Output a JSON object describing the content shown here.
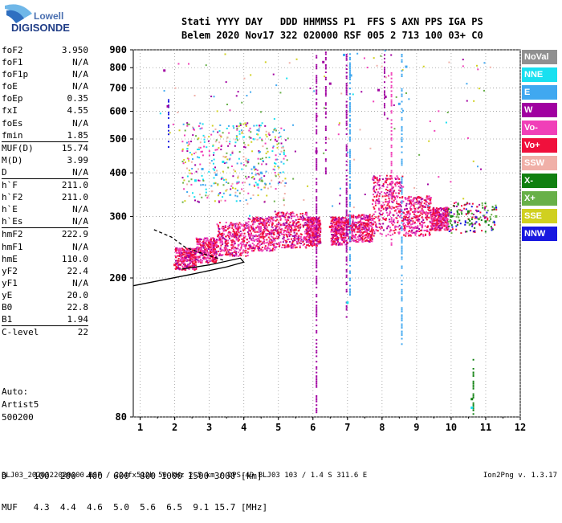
{
  "header": {
    "line1": "Stati YYYY DAY   DDD HHMMSS P1  FFS S AXN PPS IGA PS",
    "line2": "Belem 2020 Nov17 322 020000 RSF 005 2 713 100 03+ C0"
  },
  "logo": {
    "top": "Lowell",
    "bottom": "DIGISONDE"
  },
  "params": [
    {
      "k": "foF2",
      "v": "3.950"
    },
    {
      "k": "foF1",
      "v": "N/A"
    },
    {
      "k": "foF1p",
      "v": "N/A"
    },
    {
      "k": "foE",
      "v": "N/A"
    },
    {
      "k": "foEp",
      "v": "0.35"
    },
    {
      "k": "fxI",
      "v": "4.55"
    },
    {
      "k": "foEs",
      "v": "N/A"
    },
    {
      "k": "fmin",
      "v": "1.85"
    },
    {
      "k": "MUF(D)",
      "v": "15.74",
      "sep": true
    },
    {
      "k": "M(D)",
      "v": "3.99"
    },
    {
      "k": "D",
      "v": "N/A"
    },
    {
      "k": "h`F",
      "v": "211.0",
      "sep": true
    },
    {
      "k": "h`F2",
      "v": "211.0"
    },
    {
      "k": "h`E",
      "v": "N/A"
    },
    {
      "k": "h`Es",
      "v": "N/A"
    },
    {
      "k": "hmF2",
      "v": "222.9",
      "sep": true
    },
    {
      "k": "hmF1",
      "v": "N/A"
    },
    {
      "k": "hmE",
      "v": "110.0"
    },
    {
      "k": "yF2",
      "v": "22.4"
    },
    {
      "k": "yF1",
      "v": "N/A"
    },
    {
      "k": "yE",
      "v": "20.0"
    },
    {
      "k": "B0",
      "v": "22.8"
    },
    {
      "k": "B1",
      "v": "1.94"
    },
    {
      "k": "C-level",
      "v": "22",
      "sep": true
    }
  ],
  "auto": {
    "line1": "Auto:",
    "line2": "Artist5",
    "line3": "500200"
  },
  "legend": [
    {
      "label": "NoVal",
      "color": "#909090"
    },
    {
      "label": "NNE",
      "color": "#19e0f0"
    },
    {
      "label": "E",
      "color": "#40a8f0"
    },
    {
      "label": "W",
      "color": "#a000a0"
    },
    {
      "label": "Vo-",
      "color": "#f040b8"
    },
    {
      "label": "Vo+",
      "color": "#f0103c"
    },
    {
      "label": "SSW",
      "color": "#f0b0a8"
    },
    {
      "label": "X-",
      "color": "#108010"
    },
    {
      "label": "X+",
      "color": "#68b048"
    },
    {
      "label": "SSE",
      "color": "#d0d020"
    },
    {
      "label": "NNW",
      "color": "#1818e0"
    }
  ],
  "dtable": {
    "row1": "D     100  200  400  600  800 1000 1500 3000 [km]",
    "row2": "MUF   4.3  4.4  4.6  5.0  5.6  6.5  9.1 15.7 [MHz]"
  },
  "footer": {
    "left": "BLJ03_2020322020000.RSF / 224fx512h 50 kHz 2.5 km / DPS-4D BLJ03 103 / 1.4 S 311.6 E",
    "right": "Ion2Png v. 1.3.17"
  },
  "chart_data": {
    "type": "scatter",
    "title": "",
    "xlabel": "",
    "ylabel": "",
    "xlim": [
      0.8,
      12
    ],
    "ylim": [
      80,
      900
    ],
    "yscale": "log",
    "x_ticks": [
      1,
      2,
      3,
      4,
      5,
      6,
      7,
      8,
      9,
      10,
      11,
      12
    ],
    "y_ticks": [
      80,
      200,
      300,
      400,
      500,
      600,
      700,
      800,
      900
    ],
    "grid": true,
    "legend_position": "right",
    "series": [
      {
        "name": "Vo+",
        "points": [
          [
            2.0,
            218
          ],
          [
            2.5,
            232
          ],
          [
            3.0,
            245
          ],
          [
            3.5,
            250
          ],
          [
            4.0,
            255
          ],
          [
            4.5,
            262
          ],
          [
            5.0,
            270
          ],
          [
            5.5,
            275
          ],
          [
            6.0,
            268
          ],
          [
            6.5,
            280
          ],
          [
            7.0,
            290
          ],
          [
            8.0,
            320
          ],
          [
            8.5,
            310
          ],
          [
            9.0,
            300
          ]
        ]
      },
      {
        "name": "Vo-",
        "points": [
          [
            2.2,
            225
          ],
          [
            2.8,
            238
          ],
          [
            3.2,
            248
          ],
          [
            3.8,
            258
          ],
          [
            4.2,
            265
          ],
          [
            4.8,
            272
          ],
          [
            5.3,
            278
          ],
          [
            6.8,
            285
          ],
          [
            7.5,
            295
          ],
          [
            8.2,
            330
          ],
          [
            8.8,
            305
          ]
        ]
      },
      {
        "name": "E",
        "points": [
          [
            2.8,
            410
          ],
          [
            3.2,
            395
          ],
          [
            4.3,
            415
          ],
          [
            4.5,
            400
          ],
          [
            6.9,
            870
          ],
          [
            7.1,
            760
          ],
          [
            8.7,
            805
          ],
          [
            8.5,
            630
          ]
        ]
      },
      {
        "name": "W",
        "points": [
          [
            1.7,
            785
          ],
          [
            1.8,
            620
          ],
          [
            6.1,
            460
          ],
          [
            6.3,
            830
          ],
          [
            6.5,
            720
          ],
          [
            7.9,
            690
          ],
          [
            8.1,
            660
          ]
        ]
      },
      {
        "name": "NNE",
        "points": [
          [
            2.6,
            380
          ],
          [
            3.4,
            430
          ],
          [
            4.4,
            370
          ],
          [
            7.0,
            170
          ],
          [
            10.6,
            85
          ]
        ]
      },
      {
        "name": "X-",
        "points": [
          [
            10.0,
            300
          ],
          [
            10.5,
            310
          ],
          [
            11.0,
            290
          ],
          [
            10.6,
            90
          ]
        ]
      },
      {
        "name": "X+",
        "points": [
          [
            10.2,
            305
          ],
          [
            10.8,
            295
          ],
          [
            11.3,
            300
          ]
        ]
      }
    ],
    "traces": [
      {
        "name": "O-trace",
        "style": "solid",
        "points": [
          [
            0.8,
            190
          ],
          [
            2.5,
            205
          ],
          [
            3.5,
            215
          ],
          [
            4.0,
            222
          ],
          [
            3.9,
            228
          ],
          [
            3.0,
            218
          ],
          [
            2.2,
            212
          ]
        ]
      },
      {
        "name": "extrapolation",
        "style": "dashed",
        "points": [
          [
            1.4,
            275
          ],
          [
            1.9,
            262
          ],
          [
            2.3,
            245
          ],
          [
            2.8,
            235
          ],
          [
            3.4,
            225
          ]
        ]
      }
    ]
  }
}
